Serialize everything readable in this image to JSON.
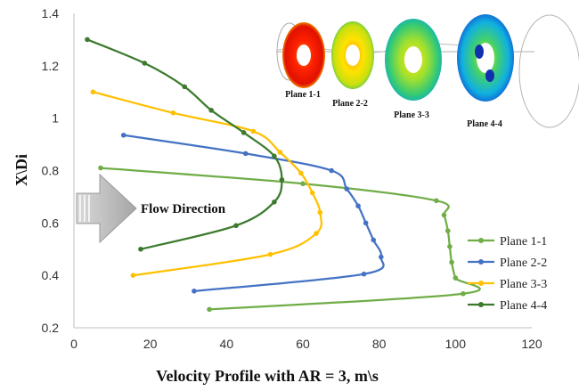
{
  "chart_data": {
    "type": "line",
    "title": "",
    "xlabel": "Velocity Profile with AR = 3, m\\s",
    "ylabel": "X\\Di",
    "xlim": [
      0,
      120
    ],
    "ylim": [
      0.2,
      1.4
    ],
    "x_ticks": [
      "0",
      "20",
      "40",
      "60",
      "80",
      "100",
      "120"
    ],
    "y_ticks": [
      "0.2",
      "0.4",
      "0.6",
      "0.8",
      "1",
      "1.2",
      "1.4"
    ],
    "grid": false,
    "legend_position": "bottom-right",
    "series": [
      {
        "name": "Plane 1-1",
        "color": "#70ad47",
        "points": [
          [
            35.5,
            0.27
          ],
          [
            102,
            0.33
          ],
          [
            100,
            0.39
          ],
          [
            99,
            0.45
          ],
          [
            98.5,
            0.51
          ],
          [
            98,
            0.57
          ],
          [
            97,
            0.63
          ],
          [
            95,
            0.685
          ],
          [
            60,
            0.75
          ],
          [
            7,
            0.81
          ]
        ]
      },
      {
        "name": "Plane 2-2",
        "color": "#4472c4",
        "points": [
          [
            31.5,
            0.34
          ],
          [
            76,
            0.405
          ],
          [
            80.5,
            0.47
          ],
          [
            78.5,
            0.535
          ],
          [
            76.5,
            0.6
          ],
          [
            74.5,
            0.665
          ],
          [
            71.5,
            0.73
          ],
          [
            67.5,
            0.8
          ],
          [
            45,
            0.865
          ],
          [
            13,
            0.935
          ]
        ]
      },
      {
        "name": "Plane 3-3",
        "color": "#ffc000",
        "points": [
          [
            15.5,
            0.4
          ],
          [
            51.5,
            0.48
          ],
          [
            63.5,
            0.56
          ],
          [
            64.5,
            0.64
          ],
          [
            62.5,
            0.715
          ],
          [
            59.5,
            0.79
          ],
          [
            54,
            0.87
          ],
          [
            47,
            0.95
          ],
          [
            26,
            1.02
          ],
          [
            5,
            1.1
          ]
        ]
      },
      {
        "name": "Plane 4-4",
        "color": "#3c7a2d",
        "points": [
          [
            17.5,
            0.5
          ],
          [
            42.5,
            0.59
          ],
          [
            52.5,
            0.68
          ],
          [
            54.5,
            0.765
          ],
          [
            52.5,
            0.855
          ],
          [
            44.5,
            0.945
          ],
          [
            36,
            1.03
          ],
          [
            29,
            1.12
          ],
          [
            18.5,
            1.21
          ],
          [
            3.5,
            1.3
          ]
        ]
      }
    ],
    "annotations": {
      "flow_direction": "Flow Direction",
      "inset_plane_labels": [
        "Plane 1-1",
        "Plane 2-2",
        "Plane 3-3",
        "Plane 4-4"
      ]
    }
  }
}
